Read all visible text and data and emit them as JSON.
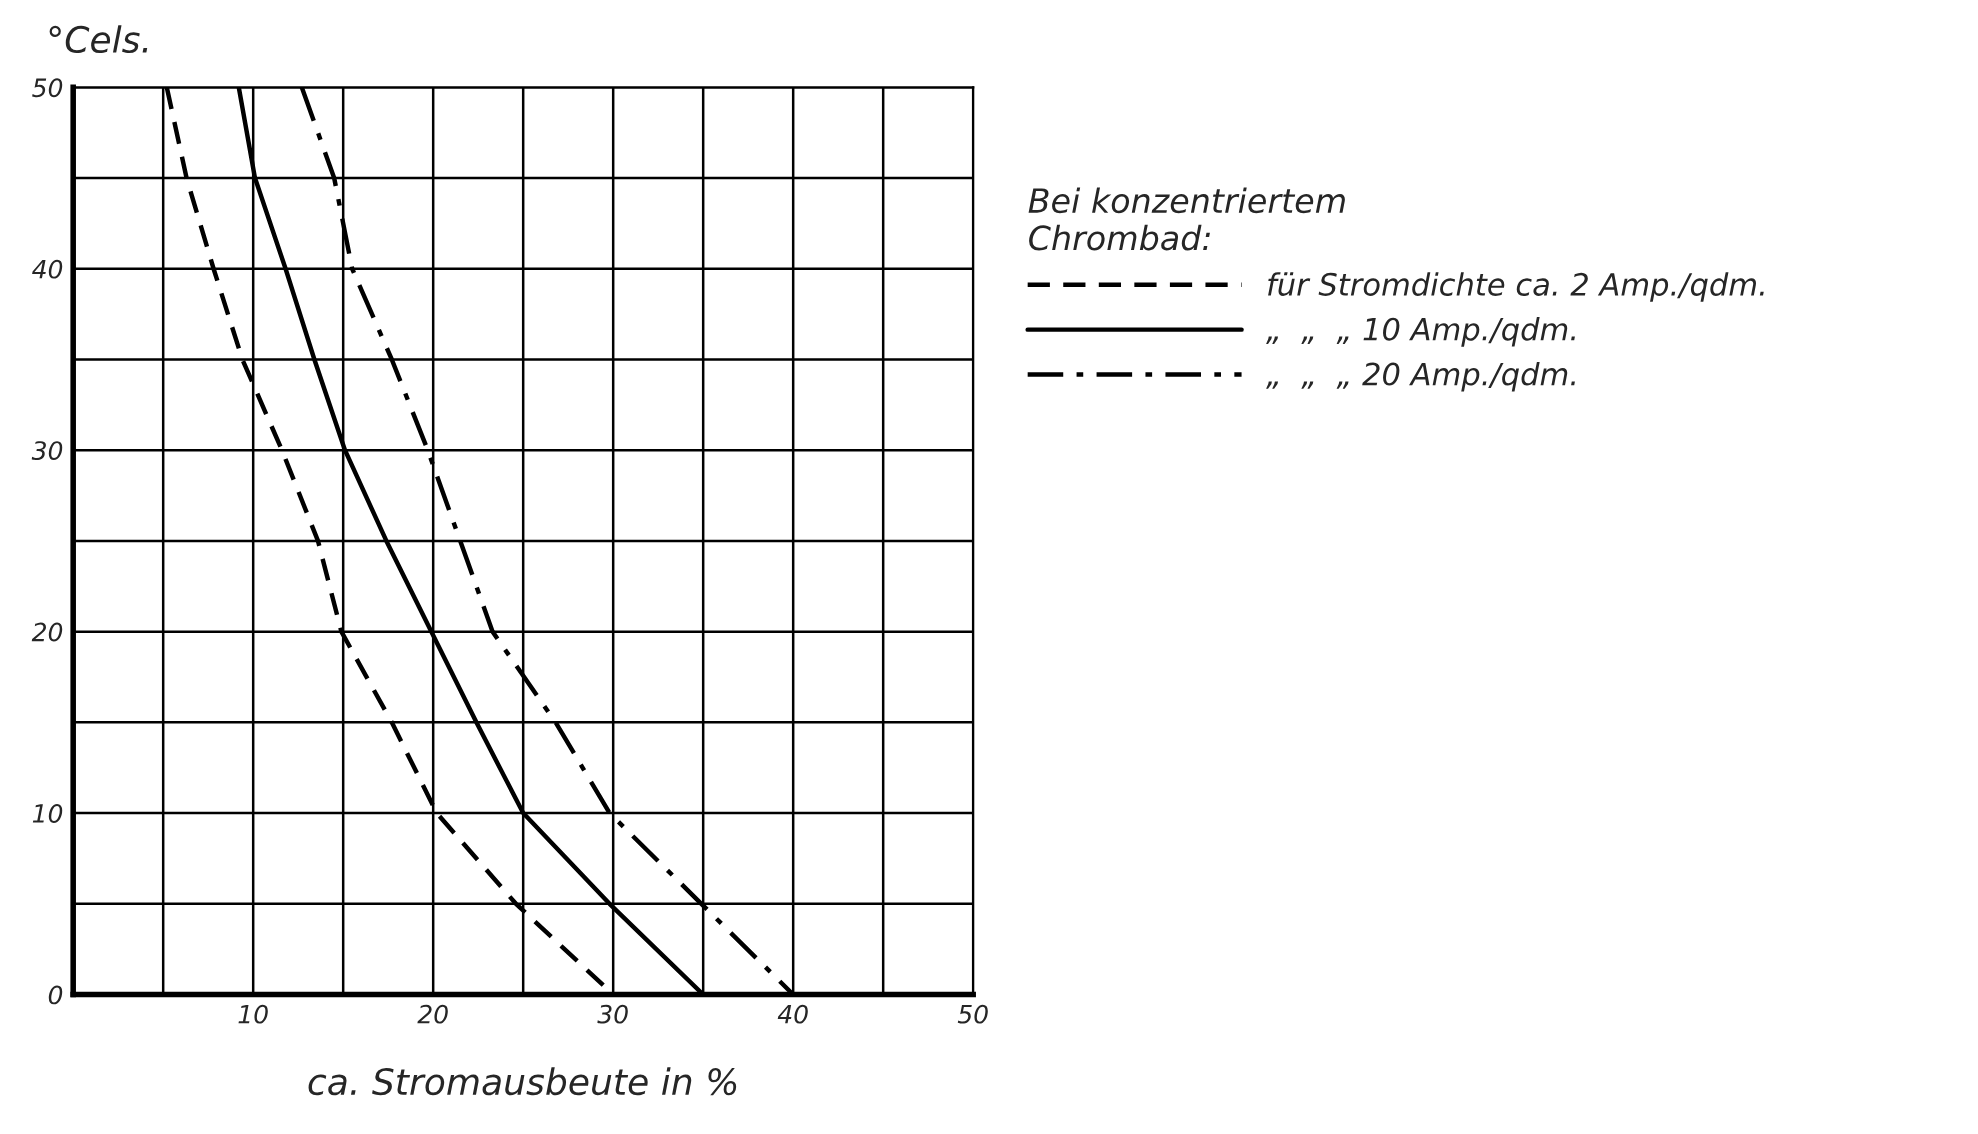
{
  "chart_data": {
    "type": "line",
    "xlabel": "ca. Stromausbeute in %",
    "ylabel": "°Cels.",
    "legend_title": "Bei konzentriertem\nChrombad:",
    "xlim": [
      0,
      50
    ],
    "ylim": [
      0,
      50
    ],
    "xticks": [
      {
        "value": 5,
        "label": null
      },
      10,
      {
        "value": 15,
        "label": null
      },
      20,
      {
        "value": 25,
        "label": null
      },
      30,
      {
        "value": 35,
        "label": null
      },
      40,
      {
        "value": 45,
        "label": null
      },
      50
    ],
    "yticks": [
      0,
      {
        "value": 5,
        "label": null
      },
      10,
      {
        "value": 15,
        "label": null
      },
      20,
      {
        "value": 25,
        "label": null
      },
      30,
      {
        "value": 35,
        "label": null
      },
      40,
      {
        "value": 45,
        "label": null
      },
      50
    ],
    "grid": true,
    "legend": "right",
    "marker": "none",
    "series": [
      {
        "name": "für Stromdichte ca. 2 Amp./qdm.",
        "color": "#000000",
        "line_style": "dashed",
        "x": [
          5.2,
          6.3,
          7.8,
          9.4,
          11.6,
          13.6,
          14.9,
          17.7,
          20.2,
          24.6,
          30
        ],
        "values": [
          50,
          45,
          40,
          35,
          30,
          25,
          20,
          15,
          10,
          5,
          0
        ]
      },
      {
        "name": "„  „  „ 10 Amp./qdm.",
        "color": "#000000",
        "line_style": "solid",
        "x": [
          9.2,
          10.1,
          11.8,
          13.4,
          15.1,
          17.4,
          19.9,
          22.4,
          25,
          29.8,
          35
        ],
        "values": [
          50,
          45,
          40,
          35,
          30,
          25,
          20,
          15,
          10,
          5,
          0
        ]
      },
      {
        "name": "„  „  „ 20 Amp./qdm.",
        "color": "#000000",
        "line_style": "dashdot",
        "x": [
          12.7,
          14.5,
          15.5,
          17.7,
          19.7,
          21.5,
          23.3,
          26.8,
          29.8,
          34.9,
          40
        ],
        "values": [
          50,
          45,
          40,
          35,
          30,
          25,
          20,
          15,
          10,
          5,
          0
        ]
      }
    ]
  }
}
